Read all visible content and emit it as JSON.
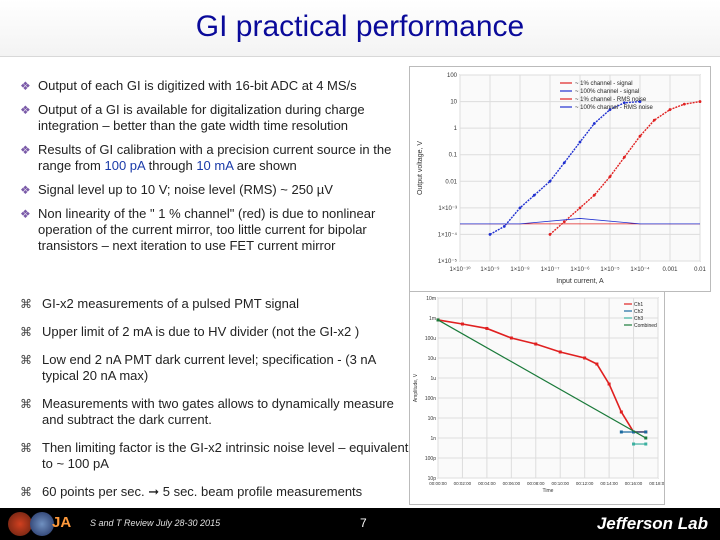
{
  "slide": {
    "title": "GI practical performance",
    "bullets": [
      {
        "text": "Output of each GI is digitized with 16-bit ADC at 4 MS/s"
      },
      {
        "text": "Output of a GI is available for digitalization during charge integration – better than the gate width time resolution"
      },
      {
        "text_before": "Results of GI calibration with a precision current source in the range from ",
        "hl1": "100 pA",
        "text_mid": " through ",
        "hl2": "10 mA",
        "text_after": " are shown"
      },
      {
        "text": "Signal level up to 10 V; noise level (RMS) ~ 250 µV"
      },
      {
        "text": "Non linearity of the \" 1 % channel\" (red) is due to nonlinear operation of the current mirror, too little current for bipolar transistors – next iteration to use FET current mirror"
      }
    ],
    "bullets2": [
      "GI-x2 measurements of a pulsed PMT signal",
      "Upper limit of 2 mA is due to HV divider (not the GI-x2 )",
      "Low end 2 nA PMT dark current level; specification - (3 nA typical 20 nA max)",
      "Measurements with two gates allows to dynamically measure and subtract the dark current.",
      "Then limiting factor is the GI-x2 intrinsic noise level – equivalent to ~ 100 pA",
      "60 points per sec. ➞ 5 sec. beam profile measurements"
    ],
    "footer": {
      "meeting": "S and T Review July 28-30 2015",
      "page": "7",
      "lab": "Jefferson Lab",
      "ja_mark": "JA"
    }
  },
  "chart_data": [
    {
      "type": "line",
      "xlabel": "Input current, A",
      "ylabel": "Output voltage, V",
      "xscale": "log",
      "yscale": "log",
      "xticks": [
        "1×10⁻¹⁰",
        "1×10⁻⁹",
        "1×10⁻⁸",
        "1×10⁻⁷",
        "1×10⁻⁶",
        "1×10⁻⁵",
        "1×10⁻⁴",
        "0.001",
        "0.01"
      ],
      "yticks": [
        "100",
        "10",
        "1",
        "0.1",
        "0.01",
        "1×10⁻³",
        "1×10⁻⁴",
        "1×10⁻⁵"
      ],
      "xlim": [
        1e-10,
        0.01
      ],
      "ylim": [
        1e-05,
        100
      ],
      "grid": true,
      "legend_position": "top-right",
      "series": [
        {
          "name": "~ 1%     channel - signal",
          "color": "#e02020",
          "x": [
            1e-07,
            3e-07,
            1e-06,
            3e-06,
            1e-05,
            3e-05,
            0.0001,
            0.0003,
            0.001,
            0.003,
            0.01
          ],
          "y": [
            0.0001,
            0.0003,
            0.001,
            0.003,
            0.015,
            0.08,
            0.5,
            2,
            5,
            8,
            10
          ]
        },
        {
          "name": "~ 100% channel - signal",
          "color": "#2030d0",
          "x": [
            1e-09,
            3e-09,
            1e-08,
            3e-08,
            1e-07,
            3e-07,
            1e-06,
            3e-06,
            1e-05,
            3e-05,
            0.0001
          ],
          "y": [
            0.0001,
            0.0002,
            0.001,
            0.003,
            0.01,
            0.05,
            0.3,
            1.5,
            5,
            9,
            10
          ]
        },
        {
          "name": "~ 1%     channel - RMS noise",
          "color": "#e02020",
          "x": [
            1e-10,
            1e-08,
            1e-06,
            0.0001,
            0.01
          ],
          "y": [
            0.00025,
            0.00025,
            0.00025,
            0.00025,
            0.00025
          ]
        },
        {
          "name": "~ 100% channel - RMS noise",
          "color": "#2030d0",
          "x": [
            1e-10,
            1e-08,
            1e-06,
            0.0001,
            0.01
          ],
          "y": [
            0.00025,
            0.00025,
            0.0004,
            0.00025,
            0.00025
          ]
        }
      ]
    },
    {
      "type": "line",
      "xlabel": "Time",
      "ylabel": "Amplitude, V",
      "yscale": "log",
      "grid": true,
      "legend_position": "top-right",
      "yticks": [
        "10m",
        "1m",
        "100u",
        "10u",
        "1u",
        "100n",
        "10n",
        "1n",
        "100p",
        "10p"
      ],
      "xticks": [
        "00:00:00",
        "00:02:00",
        "00:04:00",
        "00:06:00",
        "00:08:00",
        "00:10:00",
        "00:12:00",
        "00:14:00",
        "00:16:00",
        "00:18:00"
      ],
      "series": [
        {
          "name": "Ch1",
          "color": "#e02020",
          "x": [
            0,
            2,
            4,
            6,
            8,
            10,
            12,
            13,
            14,
            15,
            16,
            17
          ],
          "y": [
            0.0008,
            0.0005,
            0.0003,
            0.0001,
            5e-05,
            2e-05,
            1e-05,
            5e-06,
            5e-07,
            2e-08,
            2e-09,
            2e-09
          ]
        },
        {
          "name": "Ch2",
          "color": "#1a6aa0",
          "x": [
            15,
            16,
            17
          ],
          "y": [
            2e-09,
            2e-09,
            2e-09
          ]
        },
        {
          "name": "Ch3",
          "color": "#3cb0a0",
          "x": [
            16,
            17
          ],
          "y": [
            5e-10,
            5e-10
          ]
        },
        {
          "name": "Combined",
          "color": "#1a7a3a",
          "x": [
            0,
            17
          ],
          "y": [
            0.0008,
            1e-09
          ]
        }
      ]
    }
  ]
}
